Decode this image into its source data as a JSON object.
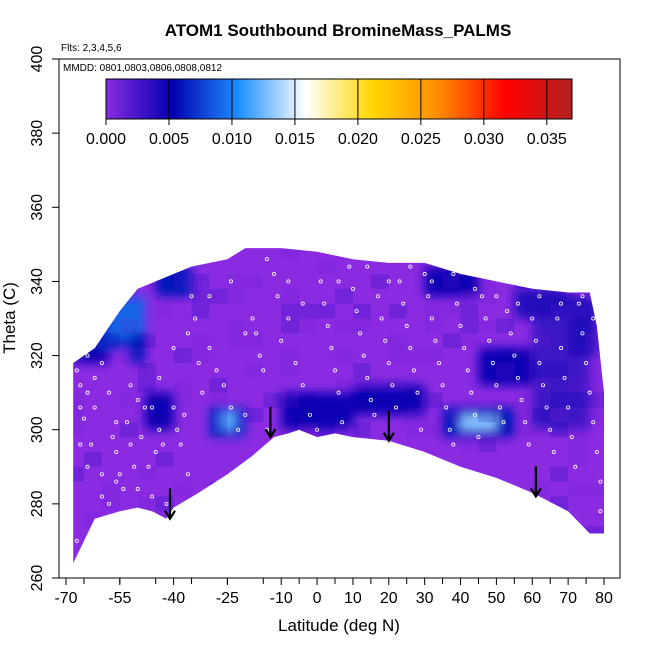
{
  "chart_data": {
    "type": "heatmap",
    "title": "ATOM1 Southbound BromineMass_PALMS",
    "flights_note": "Flts: 2,3,4,5,6",
    "dates_note": "MMDD: 0801,0803,0806,0808,0812",
    "xlabel": "Latitude (deg N)",
    "ylabel": "Theta (C)",
    "xlim": [
      -70,
      80
    ],
    "ylim": [
      260,
      400
    ],
    "x_tick_labels": [
      "-70",
      "-55",
      "-40",
      "-25",
      "-10",
      "0",
      "10",
      "20",
      "30",
      "40",
      "50",
      "60",
      "70",
      "80"
    ],
    "x_tick_values": [
      -70,
      -55,
      -40,
      -25,
      -10,
      0,
      10,
      20,
      30,
      40,
      50,
      60,
      70,
      80
    ],
    "y_tick_labels": [
      "260",
      "280",
      "300",
      "320",
      "340",
      "360",
      "380",
      "400"
    ],
    "y_tick_values": [
      260,
      280,
      300,
      320,
      340,
      360,
      380,
      400
    ],
    "colorbar": {
      "range": [
        0,
        0.037
      ],
      "tick_labels": [
        "0.000",
        "0.005",
        "0.010",
        "0.015",
        "0.020",
        "0.025",
        "0.030",
        "0.035"
      ],
      "tick_values": [
        0,
        0.005,
        0.01,
        0.015,
        0.02,
        0.025,
        0.03,
        0.035
      ],
      "colors": [
        "#8a2be2",
        "#0000b0",
        "#1e90ff",
        "#ffffff",
        "#ffd700",
        "#ff8c00",
        "#ff0000",
        "#b22222"
      ]
    },
    "background_color": "#8a2be2",
    "upper_boundary": [
      [
        -68,
        318
      ],
      [
        -62,
        322
      ],
      [
        -55,
        332
      ],
      [
        -50,
        338
      ],
      [
        -45,
        340
      ],
      [
        -40,
        342
      ],
      [
        -35,
        344
      ],
      [
        -30,
        345
      ],
      [
        -25,
        346
      ],
      [
        -20,
        349
      ],
      [
        -10,
        349
      ],
      [
        0,
        348
      ],
      [
        10,
        346
      ],
      [
        20,
        345
      ],
      [
        30,
        345
      ],
      [
        40,
        342
      ],
      [
        50,
        340
      ],
      [
        60,
        338
      ],
      [
        70,
        337
      ],
      [
        76,
        337
      ],
      [
        78,
        328
      ],
      [
        80,
        310
      ]
    ],
    "lower_boundary": [
      [
        -68,
        264
      ],
      [
        -62,
        276
      ],
      [
        -55,
        278
      ],
      [
        -50,
        279
      ],
      [
        -46,
        278
      ],
      [
        -42,
        276
      ],
      [
        -40,
        279
      ],
      [
        -33,
        283
      ],
      [
        -25,
        288
      ],
      [
        -18,
        293
      ],
      [
        -12,
        298
      ],
      [
        -8,
        299
      ],
      [
        -5,
        300
      ],
      [
        0,
        298
      ],
      [
        5,
        299
      ],
      [
        10,
        298
      ],
      [
        20,
        297
      ],
      [
        30,
        294
      ],
      [
        40,
        290
      ],
      [
        50,
        287
      ],
      [
        60,
        283
      ],
      [
        70,
        278
      ],
      [
        76,
        272
      ],
      [
        80,
        272
      ],
      [
        80,
        300
      ]
    ],
    "patches": [
      {
        "lat": [
          -68,
          -58
        ],
        "theta": [
          318,
          326
        ],
        "value": 0.005
      },
      {
        "lat": [
          -62,
          -50
        ],
        "theta": [
          322,
          332
        ],
        "value": 0.007
      },
      {
        "lat": [
          -58,
          -48
        ],
        "theta": [
          325,
          336
        ],
        "value": 0.009
      },
      {
        "lat": [
          -52,
          -48
        ],
        "theta": [
          318,
          326
        ],
        "value": 0.006
      },
      {
        "lat": [
          -45,
          -35
        ],
        "theta": [
          336,
          344
        ],
        "value": 0.006
      },
      {
        "lat": [
          -30,
          -20
        ],
        "theta": [
          298,
          306
        ],
        "value": 0.007
      },
      {
        "lat": [
          -27,
          -23
        ],
        "theta": [
          300,
          305
        ],
        "value": 0.012
      },
      {
        "lat": [
          -48,
          -40
        ],
        "theta": [
          300,
          310
        ],
        "value": 0.005
      },
      {
        "lat": [
          -10,
          10
        ],
        "theta": [
          300,
          310
        ],
        "value": 0.005
      },
      {
        "lat": [
          10,
          30
        ],
        "theta": [
          304,
          312
        ],
        "value": 0.005
      },
      {
        "lat": [
          35,
          55
        ],
        "theta": [
          298,
          306
        ],
        "value": 0.006
      },
      {
        "lat": [
          40,
          50
        ],
        "theta": [
          300,
          304
        ],
        "value": 0.013
      },
      {
        "lat": [
          45,
          60
        ],
        "theta": [
          312,
          322
        ],
        "value": 0.005
      },
      {
        "lat": [
          30,
          45
        ],
        "theta": [
          336,
          344
        ],
        "value": 0.005
      },
      {
        "lat": [
          55,
          70
        ],
        "theta": [
          330,
          338
        ],
        "value": 0.004
      },
      {
        "lat": [
          60,
          76
        ],
        "theta": [
          300,
          330
        ],
        "value": 0.003
      },
      {
        "lat": [
          70,
          78
        ],
        "theta": [
          320,
          336
        ],
        "value": 0.004
      }
    ],
    "arrows": [
      {
        "lat": -41,
        "theta_top": 282,
        "theta_tip": 276
      },
      {
        "lat": -13,
        "theta_top": 304,
        "theta_tip": 298
      },
      {
        "lat": 20,
        "theta_top": 303,
        "theta_tip": 297
      },
      {
        "lat": 61,
        "theta_top": 288,
        "theta_tip": 282
      }
    ],
    "sample_points": [
      [
        -67,
        316
      ],
      [
        -66,
        312
      ],
      [
        -66,
        306
      ],
      [
        -65,
        303
      ],
      [
        -64,
        310
      ],
      [
        -63,
        296
      ],
      [
        -62,
        306
      ],
      [
        -60,
        288
      ],
      [
        -58,
        280
      ],
      [
        -57,
        298
      ],
      [
        -56,
        294
      ],
      [
        -55,
        288
      ],
      [
        -54,
        284
      ],
      [
        -53,
        302
      ],
      [
        -52,
        296
      ],
      [
        -51,
        290
      ],
      [
        -50,
        284
      ],
      [
        -49,
        298
      ],
      [
        -48,
        306
      ],
      [
        -47,
        290
      ],
      [
        -46,
        282
      ],
      [
        -45,
        294
      ],
      [
        -44,
        300
      ],
      [
        -43,
        296
      ],
      [
        -42,
        280
      ],
      [
        -40,
        306
      ],
      [
        -39,
        300
      ],
      [
        -38,
        296
      ],
      [
        -37,
        304
      ],
      [
        -36,
        288
      ],
      [
        -35,
        336
      ],
      [
        -34,
        330
      ],
      [
        -33,
        318
      ],
      [
        -32,
        310
      ],
      [
        -30,
        322
      ],
      [
        -28,
        316
      ],
      [
        -26,
        312
      ],
      [
        -24,
        306
      ],
      [
        -22,
        300
      ],
      [
        -20,
        304
      ],
      [
        -18,
        330
      ],
      [
        -17,
        326
      ],
      [
        -16,
        320
      ],
      [
        -15,
        316
      ],
      [
        -14,
        300
      ],
      [
        -12,
        342
      ],
      [
        -11,
        336
      ],
      [
        -10,
        324
      ],
      [
        -8,
        330
      ],
      [
        -6,
        318
      ],
      [
        -4,
        312
      ],
      [
        -2,
        304
      ],
      [
        0,
        300
      ],
      [
        1,
        340
      ],
      [
        2,
        334
      ],
      [
        3,
        328
      ],
      [
        4,
        322
      ],
      [
        5,
        316
      ],
      [
        6,
        310
      ],
      [
        7,
        302
      ],
      [
        9,
        344
      ],
      [
        10,
        338
      ],
      [
        11,
        332
      ],
      [
        12,
        326
      ],
      [
        13,
        320
      ],
      [
        14,
        314
      ],
      [
        15,
        308
      ],
      [
        16,
        304
      ],
      [
        17,
        336
      ],
      [
        18,
        330
      ],
      [
        19,
        324
      ],
      [
        20,
        318
      ],
      [
        21,
        312
      ],
      [
        22,
        306
      ],
      [
        23,
        340
      ],
      [
        24,
        334
      ],
      [
        25,
        328
      ],
      [
        26,
        322
      ],
      [
        27,
        316
      ],
      [
        28,
        310
      ],
      [
        29,
        300
      ],
      [
        30,
        342
      ],
      [
        31,
        336
      ],
      [
        32,
        330
      ],
      [
        33,
        324
      ],
      [
        34,
        318
      ],
      [
        35,
        312
      ],
      [
        36,
        306
      ],
      [
        37,
        300
      ],
      [
        38,
        296
      ],
      [
        39,
        334
      ],
      [
        40,
        328
      ],
      [
        41,
        322
      ],
      [
        42,
        316
      ],
      [
        43,
        310
      ],
      [
        44,
        304
      ],
      [
        45,
        298
      ],
      [
        46,
        336
      ],
      [
        47,
        330
      ],
      [
        48,
        324
      ],
      [
        49,
        318
      ],
      [
        50,
        312
      ],
      [
        51,
        306
      ],
      [
        52,
        302
      ],
      [
        53,
        332
      ],
      [
        54,
        326
      ],
      [
        55,
        320
      ],
      [
        56,
        314
      ],
      [
        57,
        308
      ],
      [
        58,
        302
      ],
      [
        59,
        296
      ],
      [
        60,
        330
      ],
      [
        61,
        324
      ],
      [
        62,
        318
      ],
      [
        63,
        312
      ],
      [
        64,
        306
      ],
      [
        65,
        300
      ],
      [
        66,
        294
      ],
      [
        67,
        330
      ],
      [
        68,
        322
      ],
      [
        69,
        314
      ],
      [
        70,
        306
      ],
      [
        71,
        298
      ],
      [
        72,
        290
      ],
      [
        73,
        334
      ],
      [
        74,
        326
      ],
      [
        75,
        318
      ],
      [
        76,
        310
      ],
      [
        77,
        302
      ],
      [
        78,
        294
      ],
      [
        79,
        286
      ],
      [
        79,
        278
      ],
      [
        -64,
        320
      ],
      [
        -62,
        314
      ],
      [
        -60,
        318
      ],
      [
        -58,
        310
      ],
      [
        -56,
        302
      ],
      [
        -50,
        308
      ],
      [
        -44,
        314
      ],
      [
        -40,
        322
      ],
      [
        -36,
        326
      ],
      [
        -30,
        336
      ],
      [
        -24,
        340
      ],
      [
        -20,
        326
      ],
      [
        -14,
        346
      ],
      [
        -8,
        340
      ],
      [
        -4,
        334
      ],
      [
        6,
        340
      ],
      [
        14,
        344
      ],
      [
        20,
        340
      ],
      [
        26,
        344
      ],
      [
        32,
        340
      ],
      [
        38,
        342
      ],
      [
        44,
        338
      ],
      [
        50,
        336
      ],
      [
        56,
        334
      ],
      [
        62,
        336
      ],
      [
        68,
        334
      ],
      [
        74,
        336
      ],
      [
        77,
        330
      ],
      [
        -46,
        306
      ],
      [
        -52,
        312
      ],
      [
        -56,
        286
      ],
      [
        -60,
        282
      ],
      [
        -66,
        296
      ],
      [
        -64,
        290
      ],
      [
        -67,
        270
      ]
    ]
  }
}
